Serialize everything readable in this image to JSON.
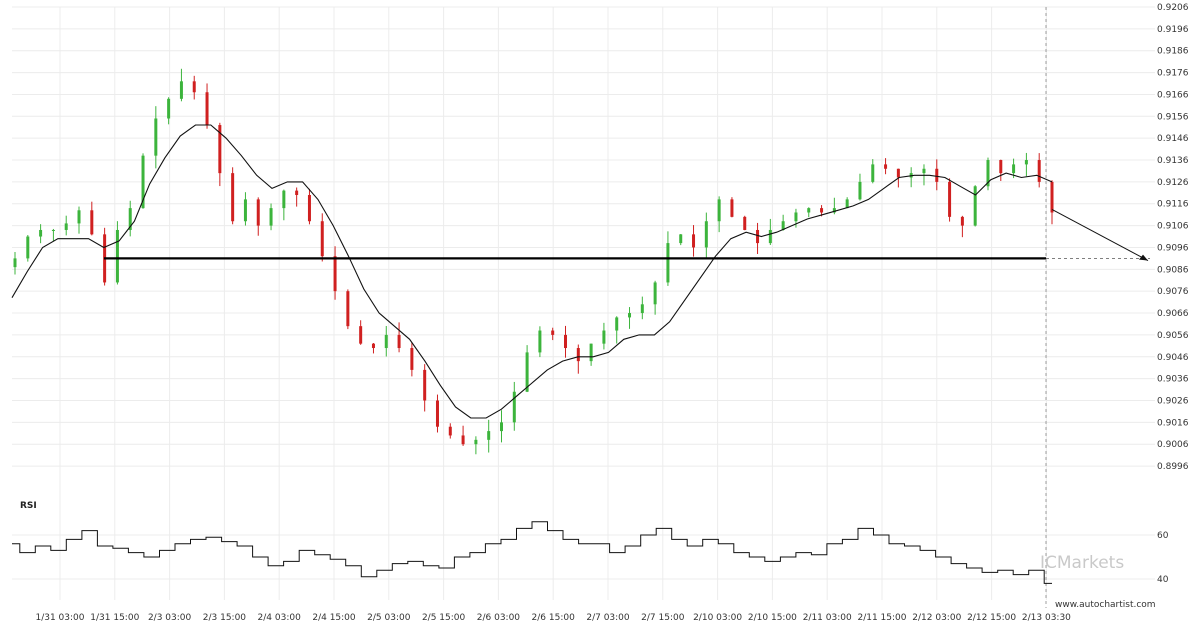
{
  "chart_data": [
    {
      "type": "candlestick",
      "panel": "price",
      "ylim": [
        0.8991,
        0.9206
      ],
      "yticks": [
        "0.9206",
        "0.9196",
        "0.9186",
        "0.9176",
        "0.9166",
        "0.9156",
        "0.9146",
        "0.9136",
        "0.9126",
        "0.9116",
        "0.9106",
        "0.9096",
        "0.9086",
        "0.9076",
        "0.9066",
        "0.9056",
        "0.9046",
        "0.9036",
        "0.9026",
        "0.9016",
        "0.9006",
        "0.8996"
      ],
      "xticks": [
        "1/31 03:00",
        "1/31 15:00",
        "2/3 03:00",
        "2/3 15:00",
        "2/4 03:00",
        "2/4 15:00",
        "2/5 03:00",
        "2/5 15:00",
        "2/6 03:00",
        "2/6 15:00",
        "2/7 03:00",
        "2/7 15:00",
        "2/10 03:00",
        "2/10 15:00",
        "2/11 03:00",
        "2/11 15:00",
        "2/12 03:00",
        "2/12 15:00",
        "2/13 03:30"
      ],
      "up_color": "#3cb43c",
      "down_color": "#d02020",
      "support_level": 0.9091,
      "forecast_target": 0.909,
      "series": [
        {
          "name": "",
          "kind": "close",
          "values": [
            0.9091,
            0.9101,
            0.9104,
            0.9104,
            0.9107,
            0.9113,
            0.9102,
            0.908,
            0.9104,
            0.9114,
            0.9138,
            0.9155,
            0.9164,
            0.9172,
            0.9167,
            0.9152,
            0.913,
            0.9108,
            0.9118,
            0.9106,
            0.9114,
            0.9122,
            0.912,
            0.9108,
            0.9092,
            0.9076,
            0.906,
            0.9052,
            0.905,
            0.9056,
            0.905,
            0.904,
            0.9026,
            0.9014,
            0.901,
            0.9006,
            0.9008,
            0.9012,
            0.9016,
            0.903,
            0.9048,
            0.9058,
            0.9056,
            0.905,
            0.9044,
            0.9052,
            0.9058,
            0.9064,
            0.9066,
            0.907,
            0.908,
            0.9098,
            0.9102,
            0.9096,
            0.9108,
            0.9118,
            0.911,
            0.9104,
            0.9098,
            0.9104,
            0.9108,
            0.9112,
            0.9114,
            0.9112,
            0.9114,
            0.9118,
            0.9126,
            0.9134,
            0.9132,
            0.9128,
            0.913,
            0.9132,
            0.9126,
            0.911,
            0.9106,
            0.9124,
            0.9136,
            0.913,
            0.9134,
            0.9136,
            0.9126,
            0.9112
          ]
        },
        {
          "name": "",
          "kind": "moving-average",
          "values": [
            0.9073,
            0.9085,
            0.9096,
            0.91,
            0.91,
            0.91,
            0.9096,
            0.9099,
            0.9108,
            0.9125,
            0.9137,
            0.9147,
            0.9152,
            0.9152,
            0.9146,
            0.9138,
            0.9129,
            0.9123,
            0.9126,
            0.9126,
            0.9118,
            0.9106,
            0.9092,
            0.9077,
            0.9066,
            0.906,
            0.9054,
            0.9044,
            0.9033,
            0.9023,
            0.9018,
            0.9018,
            0.9022,
            0.9028,
            0.9034,
            0.904,
            0.9044,
            0.9046,
            0.9046,
            0.9048,
            0.9054,
            0.9056,
            0.9056,
            0.9062,
            0.9072,
            0.9082,
            0.9092,
            0.91,
            0.9103,
            0.9101,
            0.9103,
            0.9106,
            0.9109,
            0.9111,
            0.9113,
            0.9115,
            0.9118,
            0.9123,
            0.9128,
            0.9129,
            0.9129,
            0.9128,
            0.9124,
            0.912,
            0.9127,
            0.913,
            0.9128,
            0.9129,
            0.9126
          ]
        }
      ]
    },
    {
      "type": "line",
      "panel": "indicator",
      "title": "RSI",
      "ylim": [
        35,
        70
      ],
      "yticks": [
        "60",
        "40"
      ],
      "series": [
        {
          "name": "RSI",
          "values": [
            56,
            52,
            55,
            53,
            58,
            62,
            55,
            54,
            52,
            50,
            53,
            56,
            58,
            59,
            57,
            55,
            50,
            46,
            48,
            53,
            51,
            49,
            46,
            41,
            44,
            47,
            48,
            46,
            45,
            50,
            52,
            56,
            58,
            63,
            66,
            62,
            58,
            56,
            56,
            52,
            55,
            60,
            63,
            58,
            55,
            58,
            56,
            52,
            50,
            48,
            50,
            52,
            51,
            56,
            58,
            63,
            60,
            56,
            55,
            53,
            50,
            47,
            45,
            43,
            44,
            42,
            44,
            38
          ]
        }
      ]
    }
  ],
  "panel_label": "RSI",
  "brand_watermark": "ICMarkets",
  "site_url": "www.autochartist.com"
}
